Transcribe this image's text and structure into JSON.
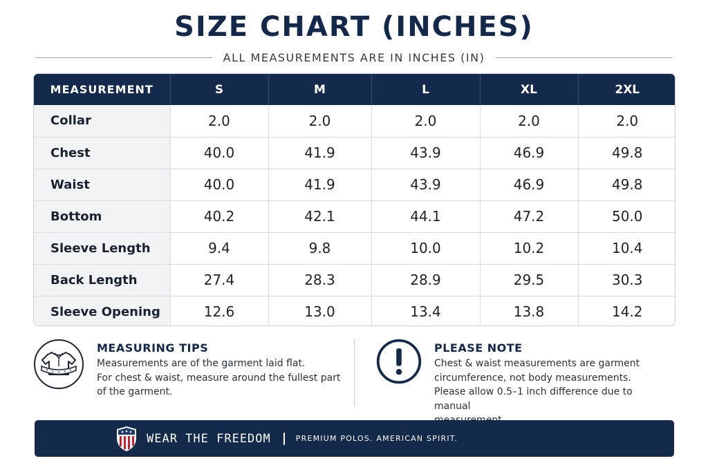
{
  "title": "SIZE CHART (INCHES)",
  "subtitle": "ALL MEASUREMENTS ARE IN INCHES (IN)",
  "table": {
    "headers": [
      "MEASUREMENT",
      "S",
      "M",
      "L",
      "XL",
      "2XL"
    ],
    "rows": [
      {
        "label": "Collar",
        "values": [
          "2.0",
          "2.0",
          "2.0",
          "2.0",
          "2.0"
        ]
      },
      {
        "label": "Chest",
        "values": [
          "40.0",
          "41.9",
          "43.9",
          "46.9",
          "49.8"
        ]
      },
      {
        "label": "Waist",
        "values": [
          "40.0",
          "41.9",
          "43.9",
          "46.9",
          "49.8"
        ]
      },
      {
        "label": "Bottom",
        "values": [
          "40.2",
          "42.1",
          "44.1",
          "47.2",
          "50.0"
        ]
      },
      {
        "label": "Sleeve Length",
        "values": [
          "9.4",
          "9.8",
          "10.0",
          "10.2",
          "10.4"
        ]
      },
      {
        "label": "Back Length",
        "values": [
          "27.4",
          "28.3",
          "28.9",
          "29.5",
          "30.3"
        ]
      },
      {
        "label": "Sleeve Opening",
        "values": [
          "12.6",
          "13.0",
          "13.4",
          "13.8",
          "14.2"
        ]
      }
    ]
  },
  "tips": {
    "icon": "shirt-measure-icon",
    "title": "MEASURING TIPS",
    "lines": [
      "Measurements are of the garment laid flat.",
      "For chest & waist, measure around the fullest part",
      "of the garment."
    ]
  },
  "note": {
    "icon": "exclamation-icon",
    "title": "PLEASE NOTE",
    "lines": [
      "Chest & waist measurements are garment",
      "circumference, not body measurements.",
      "Please allow 0.5–1 inch difference due to manual",
      "measurement."
    ]
  },
  "footer": {
    "logo_icon": "flag-shield-icon",
    "brand": "WEAR THE FREEDOM",
    "tagline": "PREMIUM POLOS. AMERICAN SPIRIT."
  },
  "colors": {
    "navy": "#132a4a",
    "row_label_bg": "#f2f3f5",
    "flag_red": "#c8202f"
  }
}
